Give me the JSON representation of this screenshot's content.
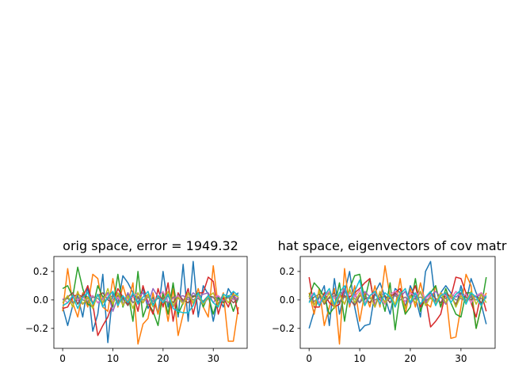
{
  "chart_data": [
    {
      "type": "line",
      "title": "orig space, error = 1949.32",
      "xlabel": "",
      "ylabel": "",
      "xlim": [
        -1.75,
        36.75
      ],
      "ylim": [
        -0.34,
        0.305
      ],
      "xticks": [
        0,
        10,
        20,
        30
      ],
      "yticks": [
        -0.2,
        0.0,
        0.2
      ],
      "ytick_labels": [
        "−0.2",
        "0.0",
        "0.2"
      ],
      "grid": false,
      "x": [
        0,
        1,
        2,
        3,
        4,
        5,
        6,
        7,
        8,
        9,
        10,
        11,
        12,
        13,
        14,
        15,
        16,
        17,
        18,
        19,
        20,
        21,
        22,
        23,
        24,
        25,
        26,
        27,
        28,
        29,
        30,
        31,
        32,
        33,
        34,
        35
      ],
      "series": [
        {
          "color": "#1f77b4",
          "values": [
            -0.05,
            -0.18,
            -0.04,
            0.03,
            -0.12,
            0.1,
            -0.22,
            -0.1,
            0.18,
            -0.3,
            0.05,
            -0.03,
            0.17,
            0.12,
            0.05,
            -0.02,
            0.08,
            -0.06,
            0.02,
            -0.1,
            0.2,
            -0.05,
            0.1,
            -0.12,
            0.25,
            -0.15,
            0.27,
            -0.12,
            0.1,
            0.04,
            -0.15,
            0.02,
            -0.05,
            0.08,
            0.02,
            0.05
          ]
        },
        {
          "color": "#ff7f0e",
          "values": [
            -0.08,
            0.22,
            -0.02,
            -0.12,
            0.05,
            -0.05,
            0.18,
            0.15,
            -0.05,
            -0.08,
            0.15,
            -0.05,
            0.1,
            -0.02,
            0.12,
            -0.31,
            -0.17,
            -0.13,
            0.05,
            -0.1,
            0.05,
            -0.15,
            0.08,
            -0.25,
            -0.1,
            0.05,
            -0.03,
            0.08,
            -0.05,
            -0.12,
            0.24,
            -0.05,
            0.05,
            -0.29,
            -0.29,
            -0.05
          ]
        },
        {
          "color": "#2ca02c",
          "values": [
            0.08,
            0.1,
            0.02,
            0.23,
            0.08,
            -0.03,
            -0.05,
            0.1,
            0.02,
            0.05,
            -0.05,
            0.18,
            -0.05,
            0.05,
            -0.15,
            0.2,
            -0.12,
            -0.02,
            -0.08,
            -0.18,
            0.05,
            -0.1,
            0.12,
            -0.1,
            -0.02,
            0.05,
            0.02,
            0.05,
            -0.05,
            0.03,
            -0.1,
            0.02,
            -0.02,
            0.03,
            -0.08,
            0.02
          ]
        },
        {
          "color": "#d62728",
          "values": [
            -0.06,
            -0.05,
            0.02,
            0.04,
            0.02,
            0.1,
            -0.03,
            -0.25,
            -0.18,
            -0.12,
            -0.02,
            0.08,
            0.02,
            -0.03,
            0.05,
            -0.08,
            0.1,
            -0.02,
            -0.1,
            0.08,
            -0.05,
            0.12,
            -0.15,
            0.05,
            -0.02,
            0.08,
            -0.1,
            0.05,
            0.05,
            0.16,
            0.13,
            -0.1,
            0.02,
            -0.05,
            0.05,
            -0.1
          ]
        },
        {
          "color": "#9467bd",
          "values": [
            0.0,
            0.02,
            -0.02,
            0.0,
            -0.03,
            0.01,
            0.03,
            -0.02,
            0.01,
            0.05,
            -0.08,
            0.02,
            -0.03,
            0.05,
            -0.02,
            0.02,
            0.05,
            -0.03,
            0.08,
            0.02,
            -0.02,
            0.03,
            -0.05,
            0.02,
            0.03,
            0.0,
            0.05,
            0.02,
            0.04,
            0.05,
            -0.02,
            0.03,
            -0.01,
            0.02,
            0.03,
            0.0
          ]
        },
        {
          "color": "#8c564b",
          "values": [
            -0.02,
            0.02,
            0.05,
            -0.03,
            0.04,
            0.02,
            -0.02,
            0.03,
            0.05,
            0.0,
            -0.02,
            0.03,
            0.01,
            -0.04,
            0.03,
            0.02,
            -0.02,
            0.04,
            -0.03,
            0.02,
            0.01,
            0.03,
            -0.02,
            0.04,
            0.0,
            -0.02,
            0.03,
            0.02,
            -0.01,
            0.03,
            0.02,
            -0.03,
            0.04,
            0.02,
            -0.02,
            0.01
          ]
        },
        {
          "color": "#e377c2",
          "values": [
            0.01,
            -0.02,
            0.03,
            0.0,
            0.02,
            -0.01,
            0.03,
            -0.02,
            0.0,
            0.04,
            -0.01,
            0.02,
            -0.03,
            0.01,
            0.02,
            0.05,
            -0.02,
            0.03,
            -0.01,
            0.02,
            0.06,
            -0.02,
            0.01,
            0.03,
            -0.02,
            0.04,
            0.0,
            0.02,
            -0.03,
            0.01,
            0.02,
            0.03,
            -0.01,
            0.02,
            0.0,
            0.02
          ]
        },
        {
          "color": "#7f7f7f",
          "values": [
            0.0,
            0.01,
            -0.02,
            0.02,
            0.0,
            -0.01,
            0.02,
            0.01,
            -0.02,
            0.01,
            0.03,
            -0.01,
            0.0,
            0.02,
            -0.02,
            0.01,
            0.0,
            0.02,
            -0.01,
            0.01,
            0.0,
            -0.02,
            0.02,
            0.01,
            -0.01,
            0.02,
            0.0,
            0.01,
            -0.02,
            0.01,
            0.02,
            0.0,
            -0.01,
            0.02,
            0.01,
            0.0
          ]
        },
        {
          "color": "#bcbd22",
          "values": [
            -0.02,
            0.03,
            -0.05,
            0.06,
            -0.03,
            0.02,
            -0.06,
            0.04,
            -0.02,
            0.08,
            -0.03,
            0.05,
            -0.04,
            0.03,
            -0.06,
            0.05,
            -0.02,
            0.04,
            -0.05,
            0.03,
            -0.02,
            0.06,
            -0.04,
            0.02,
            -0.03,
            0.05,
            -0.02,
            0.04,
            -0.03,
            0.02,
            0.05,
            -0.04,
            0.03,
            -0.02,
            0.04,
            0.02
          ]
        },
        {
          "color": "#17becf",
          "values": [
            -0.04,
            -0.02,
            0.03,
            -0.06,
            0.02,
            0.05,
            -0.03,
            0.04,
            -0.05,
            0.02,
            0.06,
            -0.04,
            0.03,
            -0.02,
            0.05,
            -0.03,
            0.02,
            0.06,
            -0.04,
            0.03,
            -0.02,
            0.04,
            -0.06,
            -0.08,
            -0.09,
            -0.09,
            -0.04,
            0.05,
            -0.02,
            0.03,
            -0.02,
            -0.05,
            0.04,
            0.02,
            0.06,
            0.03
          ]
        }
      ]
    },
    {
      "type": "line",
      "title": "hat space, eigenvectors of cov matrix",
      "xlabel": "",
      "ylabel": "",
      "xlim": [
        -1.75,
        36.75
      ],
      "ylim": [
        -0.34,
        0.305
      ],
      "xticks": [
        0,
        10,
        20,
        30
      ],
      "yticks": [
        -0.2,
        0.0,
        0.2
      ],
      "ytick_labels": [
        "−0.2",
        "0.0",
        "0.2"
      ],
      "grid": false,
      "x": [
        0,
        1,
        2,
        3,
        4,
        5,
        6,
        7,
        8,
        9,
        10,
        11,
        12,
        13,
        14,
        15,
        16,
        17,
        18,
        19,
        20,
        21,
        22,
        23,
        24,
        25,
        26,
        27,
        28,
        29,
        30,
        31,
        32,
        33,
        34,
        35
      ],
      "series": [
        {
          "color": "#1f77b4",
          "values": [
            -0.2,
            -0.08,
            0.02,
            0.1,
            -0.18,
            0.15,
            -0.1,
            0.05,
            0.2,
            -0.05,
            -0.22,
            -0.18,
            -0.17,
            0.05,
            0.12,
            0.02,
            -0.1,
            0.08,
            0.05,
            -0.05,
            0.1,
            0.02,
            -0.12,
            0.2,
            0.27,
            -0.02,
            0.05,
            0.1,
            0.05,
            -0.05,
            0.1,
            -0.02,
            0.15,
            0.05,
            -0.03,
            -0.17
          ]
        },
        {
          "color": "#ff7f0e",
          "values": [
            0.05,
            -0.1,
            0.08,
            -0.18,
            -0.05,
            0.08,
            -0.31,
            0.22,
            -0.05,
            0.1,
            -0.15,
            0.05,
            -0.05,
            0.1,
            -0.05,
            0.24,
            0.02,
            -0.05,
            0.15,
            -0.1,
            0.08,
            -0.05,
            0.12,
            -0.02,
            -0.05,
            0.1,
            -0.05,
            0.05,
            -0.27,
            -0.26,
            -0.05,
            0.18,
            0.1,
            -0.2,
            -0.05,
            0.05
          ]
        },
        {
          "color": "#2ca02c",
          "values": [
            0.02,
            0.12,
            0.08,
            0.02,
            -0.1,
            -0.05,
            0.12,
            -0.15,
            0.08,
            0.17,
            0.18,
            0.0,
            0.15,
            -0.05,
            0.05,
            -0.08,
            0.12,
            -0.21,
            0.05,
            -0.1,
            -0.05,
            0.15,
            -0.08,
            0.02,
            0.05,
            0.1,
            -0.05,
            0.08,
            -0.02,
            -0.1,
            -0.12,
            0.05,
            0.05,
            -0.2,
            -0.05,
            0.16
          ]
        },
        {
          "color": "#d62728",
          "values": [
            0.16,
            -0.05,
            -0.05,
            0.05,
            -0.02,
            -0.05,
            -0.03,
            0.08,
            0.02,
            0.05,
            0.08,
            0.12,
            0.15,
            -0.05,
            0.05,
            -0.02,
            0.02,
            0.05,
            0.08,
            -0.05,
            0.02,
            0.1,
            -0.05,
            0.02,
            -0.19,
            -0.15,
            -0.1,
            0.05,
            0.02,
            0.16,
            0.15,
            0.05,
            -0.02,
            -0.12,
            0.05,
            -0.08
          ]
        },
        {
          "color": "#9467bd",
          "values": [
            0.01,
            0.04,
            -0.02,
            0.03,
            0.05,
            -0.04,
            0.02,
            0.08,
            -0.03,
            0.04,
            -0.02,
            0.06,
            0.02,
            -0.03,
            0.05,
            0.03,
            -0.02,
            0.04,
            0.02,
            0.06,
            -0.03,
            0.02,
            0.05,
            -0.02,
            0.03,
            0.06,
            0.02,
            -0.03,
            0.04,
            0.02,
            0.05,
            -0.02,
            0.03,
            0.02,
            0.04,
            0.01
          ]
        },
        {
          "color": "#8c564b",
          "values": [
            -0.01,
            0.02,
            0.04,
            -0.03,
            0.02,
            0.05,
            -0.02,
            0.03,
            0.01,
            -0.04,
            0.03,
            0.02,
            -0.02,
            0.04,
            0.0,
            0.03,
            -0.02,
            0.05,
            0.02,
            -0.01,
            0.03,
            0.04,
            -0.03,
            0.02,
            0.05,
            0.01,
            -0.02,
            0.04,
            0.02,
            -0.03,
            0.05,
            0.02,
            0.0,
            0.03,
            -0.02,
            0.02
          ]
        },
        {
          "color": "#e377c2",
          "values": [
            0.02,
            0.05,
            -0.02,
            0.03,
            0.06,
            0.01,
            0.04,
            -0.03,
            0.05,
            0.02,
            0.07,
            -0.02,
            0.03,
            0.05,
            0.01,
            -0.03,
            0.04,
            0.06,
            0.02,
            -0.01,
            0.05,
            0.03,
            0.06,
            0.01,
            0.04,
            -0.02,
            0.05,
            0.03,
            0.01,
            0.06,
            0.02,
            0.04,
            -0.02,
            0.03,
            0.05,
            0.02
          ]
        },
        {
          "color": "#7f7f7f",
          "values": [
            0.01,
            -0.01,
            0.02,
            0.0,
            0.01,
            0.03,
            -0.01,
            0.02,
            0.0,
            0.01,
            -0.02,
            0.02,
            0.01,
            0.0,
            0.02,
            -0.01,
            0.01,
            0.03,
            0.0,
            0.02,
            -0.01,
            0.01,
            0.02,
            0.0,
            0.01,
            -0.01,
            0.02,
            0.01,
            0.03,
            0.0,
            0.01,
            -0.01,
            0.02,
            0.0,
            0.01,
            0.02
          ]
        },
        {
          "color": "#bcbd22",
          "values": [
            0.03,
            -0.04,
            0.06,
            -0.02,
            0.05,
            -0.06,
            0.04,
            -0.03,
            0.08,
            -0.02,
            0.05,
            -0.04,
            0.03,
            -0.05,
            0.06,
            -0.02,
            0.04,
            -0.03,
            0.05,
            -0.06,
            0.03,
            -0.02,
            0.06,
            -0.04,
            0.02,
            -0.03,
            0.05,
            -0.02,
            0.04,
            -0.05,
            0.03,
            -0.02,
            0.06,
            -0.03,
            0.04,
            -0.02
          ]
        },
        {
          "color": "#17becf",
          "values": [
            -0.02,
            0.05,
            -0.04,
            0.03,
            0.08,
            -0.03,
            0.05,
            0.1,
            -0.02,
            0.06,
            0.14,
            -0.04,
            0.03,
            0.06,
            -0.03,
            0.05,
            0.02,
            -0.05,
            0.04,
            0.08,
            -0.02,
            0.05,
            -0.03,
            0.02,
            0.06,
            -0.04,
            0.03,
            0.05,
            -0.02,
            0.04,
            0.07,
            -0.03,
            0.05,
            0.02,
            -0.04,
            0.03
          ]
        }
      ]
    }
  ]
}
